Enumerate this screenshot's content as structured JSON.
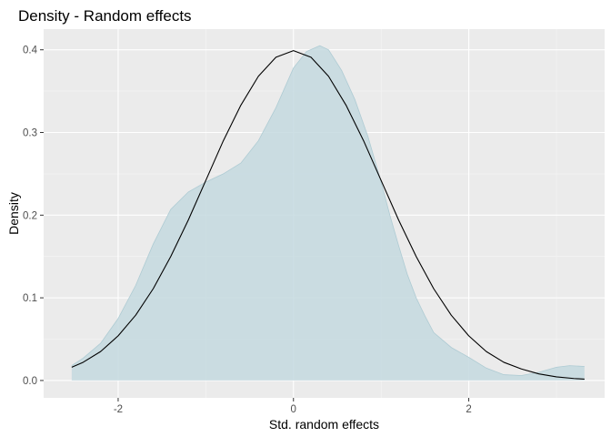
{
  "chart_data": {
    "type": "area",
    "title": "Density - Random effects",
    "xlabel": "Std. random effects",
    "ylabel": "Density",
    "xlim": [
      -2.85,
      3.55
    ],
    "ylim": [
      -0.021,
      0.425
    ],
    "x_ticks": [
      {
        "value": -2,
        "label": "-2"
      },
      {
        "value": 0,
        "label": "0"
      },
      {
        "value": 2,
        "label": "2"
      }
    ],
    "y_ticks": [
      {
        "value": 0.0,
        "label": "0.0"
      },
      {
        "value": 0.1,
        "label": "0.1"
      },
      {
        "value": 0.2,
        "label": "0.2"
      },
      {
        "value": 0.3,
        "label": "0.3"
      },
      {
        "value": 0.4,
        "label": "0.4"
      }
    ],
    "grid": true,
    "background": "#ebebeb",
    "series": [
      {
        "kind": "area",
        "fill": "#c4d9df",
        "stroke": "#aecbd3",
        "points": [
          [
            -2.53,
            0.018
          ],
          [
            -2.4,
            0.027
          ],
          [
            -2.2,
            0.045
          ],
          [
            -2.0,
            0.075
          ],
          [
            -1.8,
            0.115
          ],
          [
            -1.6,
            0.165
          ],
          [
            -1.4,
            0.207
          ],
          [
            -1.2,
            0.228
          ],
          [
            -1.0,
            0.24
          ],
          [
            -0.8,
            0.25
          ],
          [
            -0.6,
            0.263
          ],
          [
            -0.4,
            0.29
          ],
          [
            -0.2,
            0.33
          ],
          [
            0.0,
            0.378
          ],
          [
            0.15,
            0.398
          ],
          [
            0.3,
            0.405
          ],
          [
            0.4,
            0.4
          ],
          [
            0.55,
            0.375
          ],
          [
            0.7,
            0.34
          ],
          [
            0.85,
            0.295
          ],
          [
            1.0,
            0.24
          ],
          [
            1.1,
            0.2
          ],
          [
            1.2,
            0.163
          ],
          [
            1.3,
            0.128
          ],
          [
            1.4,
            0.1
          ],
          [
            1.5,
            0.078
          ],
          [
            1.6,
            0.058
          ],
          [
            1.8,
            0.04
          ],
          [
            2.0,
            0.028
          ],
          [
            2.2,
            0.015
          ],
          [
            2.4,
            0.007
          ],
          [
            2.6,
            0.006
          ],
          [
            2.8,
            0.01
          ],
          [
            3.0,
            0.016
          ],
          [
            3.15,
            0.018
          ],
          [
            3.32,
            0.017
          ]
        ]
      },
      {
        "kind": "line",
        "stroke": "#000000",
        "points": [
          [
            -2.53,
            0.016
          ],
          [
            -2.4,
            0.022
          ],
          [
            -2.2,
            0.035
          ],
          [
            -2.0,
            0.054
          ],
          [
            -1.8,
            0.079
          ],
          [
            -1.6,
            0.111
          ],
          [
            -1.4,
            0.15
          ],
          [
            -1.2,
            0.194
          ],
          [
            -1.0,
            0.242
          ],
          [
            -0.8,
            0.29
          ],
          [
            -0.6,
            0.333
          ],
          [
            -0.4,
            0.368
          ],
          [
            -0.2,
            0.391
          ],
          [
            0.0,
            0.399
          ],
          [
            0.2,
            0.391
          ],
          [
            0.4,
            0.368
          ],
          [
            0.6,
            0.333
          ],
          [
            0.8,
            0.29
          ],
          [
            1.0,
            0.242
          ],
          [
            1.2,
            0.194
          ],
          [
            1.4,
            0.15
          ],
          [
            1.6,
            0.111
          ],
          [
            1.8,
            0.079
          ],
          [
            2.0,
            0.054
          ],
          [
            2.2,
            0.035
          ],
          [
            2.4,
            0.022
          ],
          [
            2.6,
            0.014
          ],
          [
            2.8,
            0.008
          ],
          [
            3.0,
            0.0044
          ],
          [
            3.2,
            0.0024
          ],
          [
            3.32,
            0.0016
          ]
        ]
      }
    ]
  }
}
